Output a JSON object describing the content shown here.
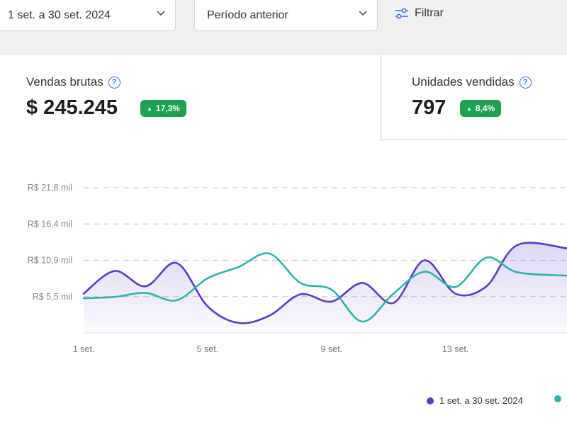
{
  "filters": {
    "date_range": "1 set. a 30 set. 2024",
    "comparison": "Período anterior",
    "filter_label": "Filtrar"
  },
  "kpis": {
    "sales": {
      "title": "Vendas brutas",
      "value": "$ 245.245",
      "delta": "17,3%"
    },
    "units": {
      "title": "Unidades vendidas",
      "value": "797",
      "delta": "8,4%"
    }
  },
  "legend": {
    "current_label": "1 set. a 30 set. 2024"
  },
  "colors": {
    "current": "#5b3cc4",
    "previous": "#2bb5aa",
    "positive": "#1ea24f",
    "help": "#3a6fd8"
  },
  "icons": {
    "dropdown": "chevron-down-icon",
    "filter": "sliders-icon",
    "help": "question-circle-icon",
    "trend": "triangle-up-icon"
  },
  "chart_data": {
    "type": "line",
    "y_ticks": [
      {
        "value": 5450,
        "label": "R$ 5,5 mil"
      },
      {
        "value": 10900,
        "label": "R$ 10,9 mil"
      },
      {
        "value": 16350,
        "label": "R$ 16,4 mil"
      },
      {
        "value": 21800,
        "label": "R$ 21,8 mil"
      }
    ],
    "x_ticks": [
      {
        "day": 1,
        "label": "1 set."
      },
      {
        "day": 5,
        "label": "5 set."
      },
      {
        "day": 9,
        "label": "9 set."
      },
      {
        "day": 13,
        "label": "13 set."
      }
    ],
    "ylim": [
      0,
      21800
    ],
    "xlim": [
      1,
      16.6
    ],
    "grid": true,
    "legend_position": "bottom-right",
    "series": [
      {
        "name": "1 set. a 30 set. 2024",
        "role": "current",
        "filled": true,
        "points": [
          [
            1,
            5900
          ],
          [
            2,
            9300
          ],
          [
            3,
            7000
          ],
          [
            4,
            10500
          ],
          [
            5,
            4000
          ],
          [
            6,
            1500
          ],
          [
            7,
            2600
          ],
          [
            8,
            5800
          ],
          [
            9,
            4700
          ],
          [
            10,
            7500
          ],
          [
            11,
            4500
          ],
          [
            12,
            10900
          ],
          [
            13,
            5900
          ],
          [
            14,
            7000
          ],
          [
            15,
            13200
          ],
          [
            16.6,
            12700
          ]
        ]
      },
      {
        "name": "",
        "role": "previous",
        "filled": false,
        "points": [
          [
            1,
            5200
          ],
          [
            2,
            5400
          ],
          [
            3,
            6000
          ],
          [
            4,
            4900
          ],
          [
            5,
            8200
          ],
          [
            6,
            9900
          ],
          [
            7,
            11900
          ],
          [
            8,
            7500
          ],
          [
            9,
            6500
          ],
          [
            10,
            1700
          ],
          [
            11,
            5900
          ],
          [
            12,
            9200
          ],
          [
            13,
            6900
          ],
          [
            14,
            11300
          ],
          [
            15,
            9100
          ],
          [
            16.6,
            8600
          ]
        ]
      }
    ]
  }
}
